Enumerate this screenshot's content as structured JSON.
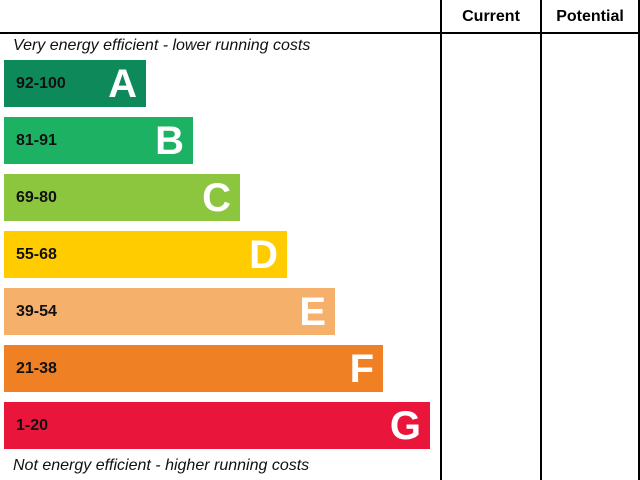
{
  "columns": {
    "current": "Current",
    "potential": "Potential"
  },
  "captions": {
    "top": "Very energy efficient - lower running costs",
    "bottom": "Not energy efficient - higher running costs"
  },
  "bands": [
    {
      "range": "92-100",
      "letter": "A",
      "color": "#0e8a5a"
    },
    {
      "range": "81-91",
      "letter": "B",
      "color": "#1db163"
    },
    {
      "range": "69-80",
      "letter": "C",
      "color": "#8cc63f"
    },
    {
      "range": "55-68",
      "letter": "D",
      "color": "#ffcc00"
    },
    {
      "range": "39-54",
      "letter": "E",
      "color": "#f5b06c"
    },
    {
      "range": "21-38",
      "letter": "F",
      "color": "#ef8023"
    },
    {
      "range": "1-20",
      "letter": "G",
      "color": "#e9153b"
    }
  ]
}
